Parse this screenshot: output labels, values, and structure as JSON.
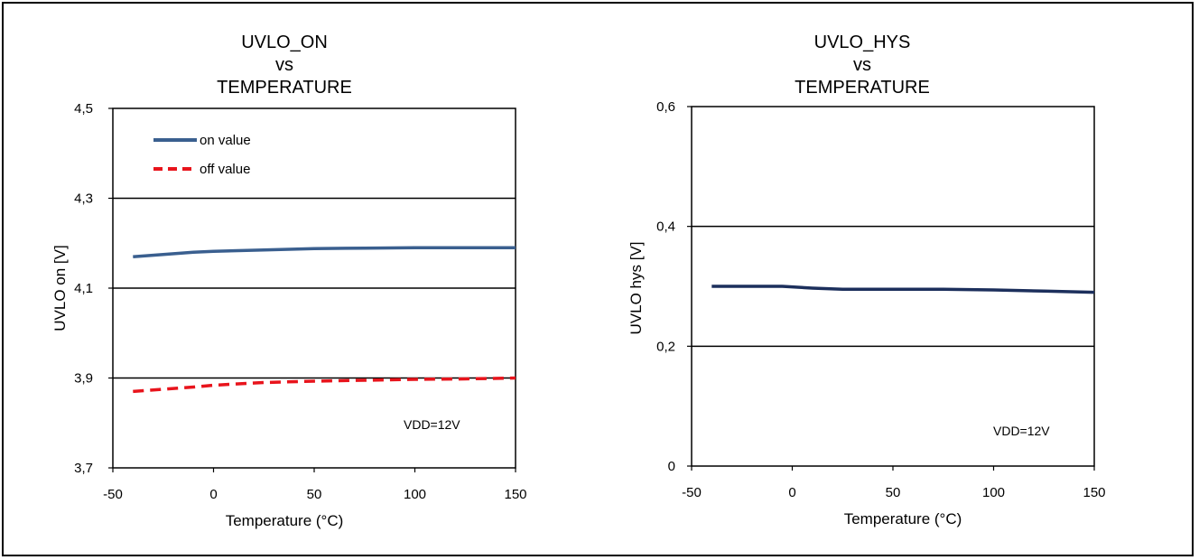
{
  "chart_data": [
    {
      "type": "line",
      "title": [
        "UVLO_ON",
        "vs",
        "TEMPERATURE"
      ],
      "xlabel": "Temperature (°C)",
      "ylabel": "UVLO on [V]",
      "xlim": [
        -50,
        150
      ],
      "ylim": [
        3.7,
        4.5
      ],
      "xticks": [
        "-50",
        "0",
        "50",
        "100",
        "150"
      ],
      "yticks": [
        "4,5",
        "4,3",
        "4,1",
        "3,9",
        "3,7"
      ],
      "ytick_values": [
        4.5,
        4.3,
        4.1,
        3.9,
        3.7
      ],
      "xtick_values": [
        -50,
        0,
        50,
        100,
        150
      ],
      "grid": "horizontal",
      "legend_position": "top-left",
      "annotation": "VDD=12V",
      "series": [
        {
          "name": "on value",
          "color": "#3a5f8f",
          "dash": "solid",
          "x": [
            -40,
            -25,
            -10,
            0,
            25,
            50,
            75,
            100,
            125,
            150
          ],
          "y": [
            4.17,
            4.175,
            4.18,
            4.182,
            4.185,
            4.188,
            4.189,
            4.19,
            4.19,
            4.19
          ]
        },
        {
          "name": "off value",
          "color": "#e8141c",
          "dash": "dashed",
          "x": [
            -40,
            -25,
            -10,
            0,
            25,
            50,
            75,
            100,
            125,
            150
          ],
          "y": [
            3.87,
            3.875,
            3.88,
            3.884,
            3.89,
            3.893,
            3.895,
            3.897,
            3.898,
            3.9
          ]
        }
      ]
    },
    {
      "type": "line",
      "title": [
        "UVLO_HYS",
        "vs",
        "TEMPERATURE"
      ],
      "xlabel": "Temperature (°C)",
      "ylabel": "UVLO hys [V]",
      "xlim": [
        -50,
        150
      ],
      "ylim": [
        0,
        0.6
      ],
      "xticks": [
        "-50",
        "0",
        "50",
        "100",
        "150"
      ],
      "yticks": [
        "0,6",
        "0,4",
        "0,2",
        "0"
      ],
      "ytick_values": [
        0.6,
        0.4,
        0.2,
        0
      ],
      "xtick_values": [
        -50,
        0,
        50,
        100,
        150
      ],
      "grid": "horizontal",
      "annotation": "VDD=12V",
      "series": [
        {
          "color": "#1c2f5c",
          "dash": "solid",
          "x": [
            -40,
            -20,
            -5,
            10,
            25,
            50,
            75,
            100,
            125,
            150
          ],
          "y": [
            0.3,
            0.3,
            0.3,
            0.297,
            0.295,
            0.295,
            0.295,
            0.294,
            0.292,
            0.29
          ]
        }
      ]
    }
  ]
}
